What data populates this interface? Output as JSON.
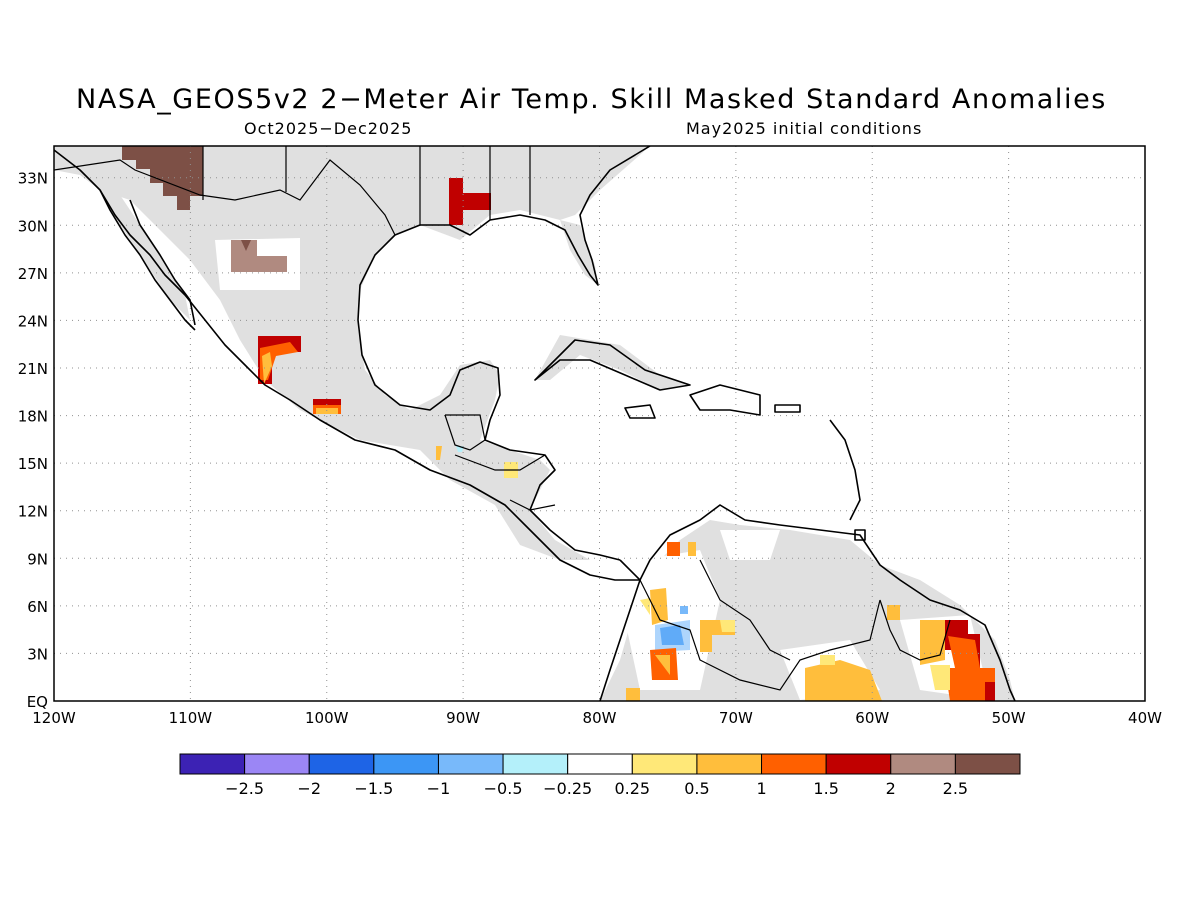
{
  "title": "NASA_GEOS5v2 2−Meter Air Temp. Skill Masked Standard Anomalies",
  "subtitle_left": "Oct2025−Dec2025",
  "subtitle_right": "May2025 initial conditions",
  "map": {
    "lon_range": [
      -120,
      -40
    ],
    "lat_range": [
      0,
      35
    ],
    "lat_ticks": [
      "33N",
      "30N",
      "27N",
      "24N",
      "21N",
      "18N",
      "15N",
      "12N",
      "9N",
      "6N",
      "3N",
      "EQ"
    ],
    "lon_ticks": [
      "120W",
      "110W",
      "100W",
      "90W",
      "80W",
      "70W",
      "60W",
      "50W",
      "40W"
    ],
    "land_masked_color": "#e0e0e0",
    "grid": "dotted"
  },
  "colorbar": {
    "colors": [
      "#3c22b4",
      "#9b86f5",
      "#1e64e6",
      "#3c96f5",
      "#78b9fa",
      "#b4f0fa",
      "#ffffff",
      "#ffe878",
      "#ffbe3c",
      "#ff6000",
      "#c00000",
      "#b08a80",
      "#7d5046"
    ],
    "labels": [
      "−2.5",
      "−2",
      "−1.5",
      "−1",
      "−0.5",
      "−0.25",
      "0.25",
      "0.5",
      "1",
      "1.5",
      "2",
      "2.5"
    ]
  }
}
